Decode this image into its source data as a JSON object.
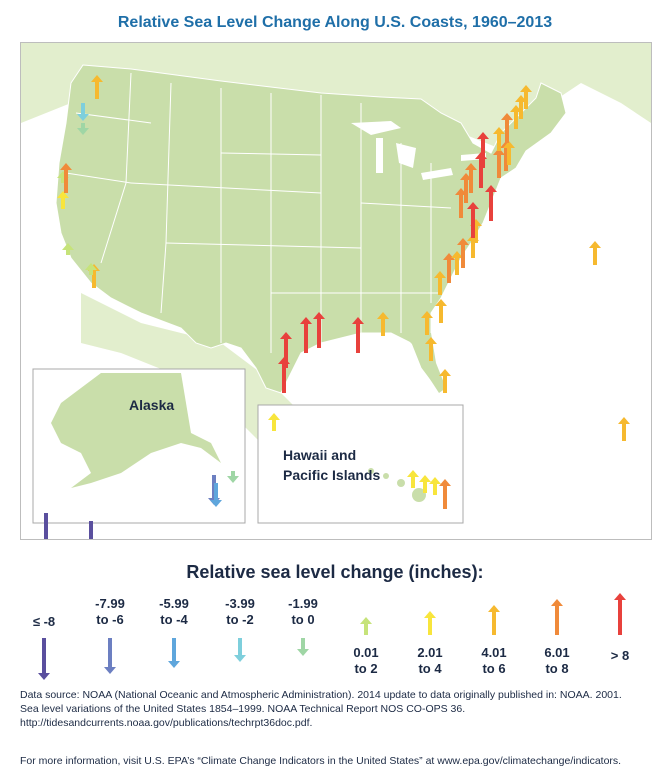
{
  "title": "Relative Sea Level Change Along U.S. Coasts, 1960–2013",
  "map": {
    "inset_alaska_label": "Alaska",
    "inset_hawaii_label_line1": "Hawaii and",
    "inset_hawaii_label_line2": "Pacific Islands"
  },
  "legend": {
    "title": "Relative sea level change (inches):",
    "categories": [
      {
        "id": "c1",
        "line1": "≤ -8",
        "line2": "",
        "color": "#5a4f9e",
        "direction": "down"
      },
      {
        "id": "c2",
        "line1": "-7.99",
        "line2": "to -6",
        "color": "#6c7fc1",
        "direction": "down"
      },
      {
        "id": "c3",
        "line1": "-5.99",
        "line2": "to -4",
        "color": "#5fa6dc",
        "direction": "down"
      },
      {
        "id": "c4",
        "line1": "-3.99",
        "line2": "to -2",
        "color": "#7ecfdc",
        "direction": "down"
      },
      {
        "id": "c5",
        "line1": "-1.99",
        "line2": "to 0",
        "color": "#9fd6a5",
        "direction": "down"
      },
      {
        "id": "c6",
        "line1": "0.01",
        "line2": "to 2",
        "color": "#c6e37a",
        "direction": "up"
      },
      {
        "id": "c7",
        "line1": "2.01",
        "line2": "to 4",
        "color": "#f8e53c",
        "direction": "up"
      },
      {
        "id": "c8",
        "line1": "4.01",
        "line2": "to 6",
        "color": "#f6b92f",
        "direction": "up"
      },
      {
        "id": "c9",
        "line1": "6.01",
        "line2": "to 8",
        "color": "#f08a3a",
        "direction": "up"
      },
      {
        "id": "c10",
        "line1": "> 8",
        "line2": "",
        "color": "#e8413c",
        "direction": "up"
      }
    ]
  },
  "source": {
    "line1": "Data source: NOAA (National Oceanic and Atmospheric Administration). 2014 update to data originally published in: NOAA. 2001.",
    "line2": "Sea level variations of the United States 1854–1999. NOAA Technical Report NOS CO-OPS 36.",
    "line3": "http://tidesandcurrents.noaa.gov/publications/techrpt36doc.pdf."
  },
  "more_info": "For more information, visit U.S. EPA’s “Climate Change Indicators in the United States” at www.epa.gov/climatechange/indicators.",
  "colors": {
    "land": "#d6e7b6",
    "land_dark": "#c3daa0",
    "state_border": "#ffffff",
    "title": "#1f6fa8",
    "text": "#1c2a44"
  }
}
